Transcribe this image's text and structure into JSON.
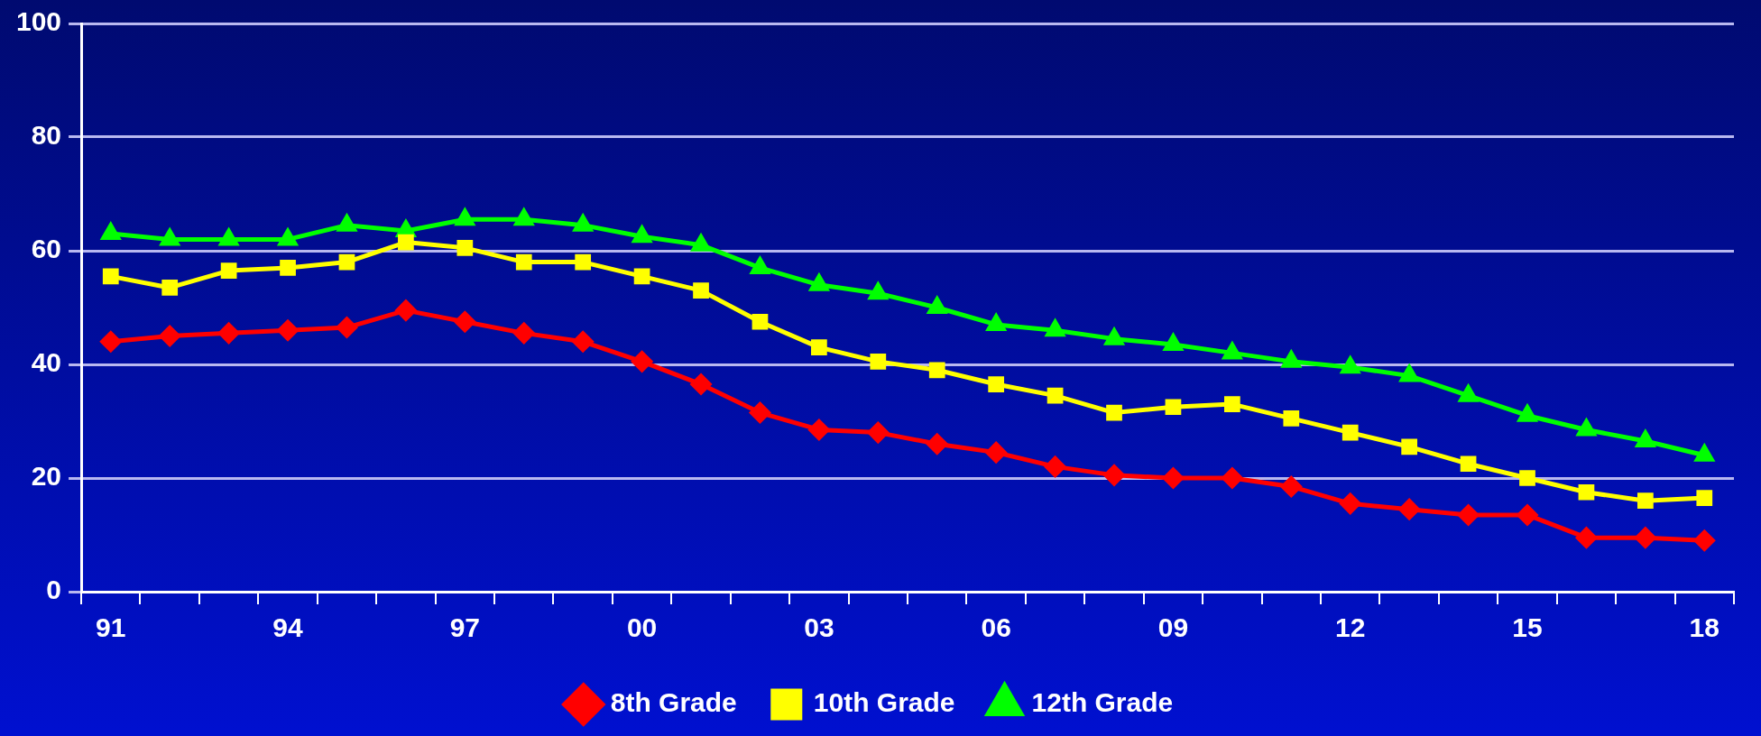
{
  "chart_data": {
    "type": "line",
    "categories": [
      "91",
      null,
      null,
      "94",
      null,
      null,
      "97",
      null,
      null,
      "00",
      null,
      null,
      "03",
      null,
      null,
      "06",
      null,
      null,
      "09",
      null,
      null,
      "12",
      null,
      null,
      "15",
      null,
      null,
      "18"
    ],
    "series": [
      {
        "name": "8th Grade",
        "color": "#ff0000",
        "marker": "diamond",
        "values": [
          44,
          45,
          45.5,
          46,
          46.5,
          49.5,
          47.5,
          45.5,
          44,
          40.5,
          36.5,
          31.5,
          28.5,
          28,
          26,
          24.5,
          22,
          20.5,
          20,
          20,
          18.5,
          15.5,
          14.5,
          13.5,
          13.5,
          9.5,
          9.5,
          9
        ]
      },
      {
        "name": "10th Grade",
        "color": "#ffff00",
        "marker": "square",
        "values": [
          55.5,
          53.5,
          56.5,
          57,
          58,
          61.5,
          60.5,
          58,
          58,
          55.5,
          53,
          47.5,
          43,
          40.5,
          39,
          36.5,
          34.5,
          31.5,
          32.5,
          33,
          30.5,
          28,
          25.5,
          22.5,
          20,
          17.5,
          16,
          16.5
        ]
      },
      {
        "name": "12th Grade",
        "color": "#00ff00",
        "marker": "triangle",
        "values": [
          63,
          62,
          62,
          62,
          64.5,
          63.5,
          65.5,
          65.5,
          64.5,
          62.5,
          61,
          57,
          54,
          52.5,
          50,
          47,
          46,
          44.5,
          43.5,
          42,
          40.5,
          39.5,
          38,
          34.5,
          31,
          28.5,
          26.5,
          24
        ]
      }
    ],
    "ylim": [
      0,
      100
    ],
    "yticks": [
      0,
      20,
      40,
      60,
      80,
      100
    ],
    "grid": "y",
    "legend": "bottom",
    "line_style": "solid"
  }
}
